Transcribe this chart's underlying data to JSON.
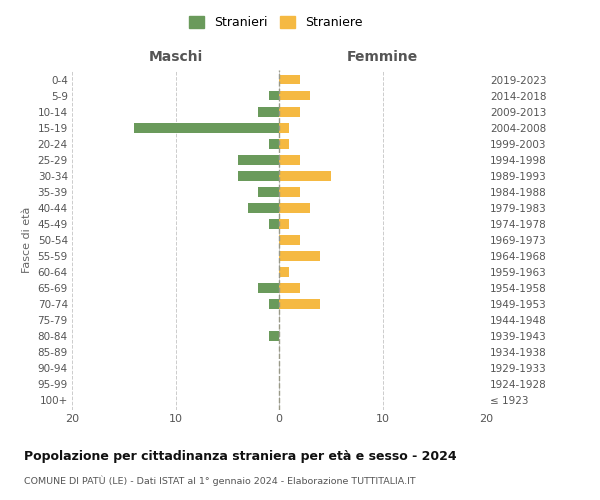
{
  "age_groups": [
    "100+",
    "95-99",
    "90-94",
    "85-89",
    "80-84",
    "75-79",
    "70-74",
    "65-69",
    "60-64",
    "55-59",
    "50-54",
    "45-49",
    "40-44",
    "35-39",
    "30-34",
    "25-29",
    "20-24",
    "15-19",
    "10-14",
    "5-9",
    "0-4"
  ],
  "birth_years": [
    "≤ 1923",
    "1924-1928",
    "1929-1933",
    "1934-1938",
    "1939-1943",
    "1944-1948",
    "1949-1953",
    "1954-1958",
    "1959-1963",
    "1964-1968",
    "1969-1973",
    "1974-1978",
    "1979-1983",
    "1984-1988",
    "1989-1993",
    "1994-1998",
    "1999-2003",
    "2004-2008",
    "2009-2013",
    "2014-2018",
    "2019-2023"
  ],
  "maschi_stranieri": [
    0,
    0,
    0,
    0,
    1,
    0,
    1,
    2,
    0,
    0,
    0,
    1,
    3,
    2,
    4,
    4,
    1,
    14,
    2,
    1,
    0
  ],
  "femmine_straniere": [
    0,
    0,
    0,
    0,
    0,
    0,
    4,
    2,
    1,
    4,
    2,
    1,
    3,
    2,
    5,
    2,
    1,
    1,
    2,
    3,
    2
  ],
  "color_maschi": "#6a9a5b",
  "color_femmine": "#f5b942",
  "title": "Popolazione per cittadinanza straniera per età e sesso - 2024",
  "subtitle": "COMUNE DI PATÙ (LE) - Dati ISTAT al 1° gennaio 2024 - Elaborazione TUTTITALIA.IT",
  "xlabel_left": "Maschi",
  "xlabel_right": "Femmine",
  "ylabel_left": "Fasce di età",
  "legend_maschi": "Stranieri",
  "legend_femmine": "Straniere",
  "xlim": 20,
  "background_color": "#ffffff",
  "grid_color": "#cccccc"
}
